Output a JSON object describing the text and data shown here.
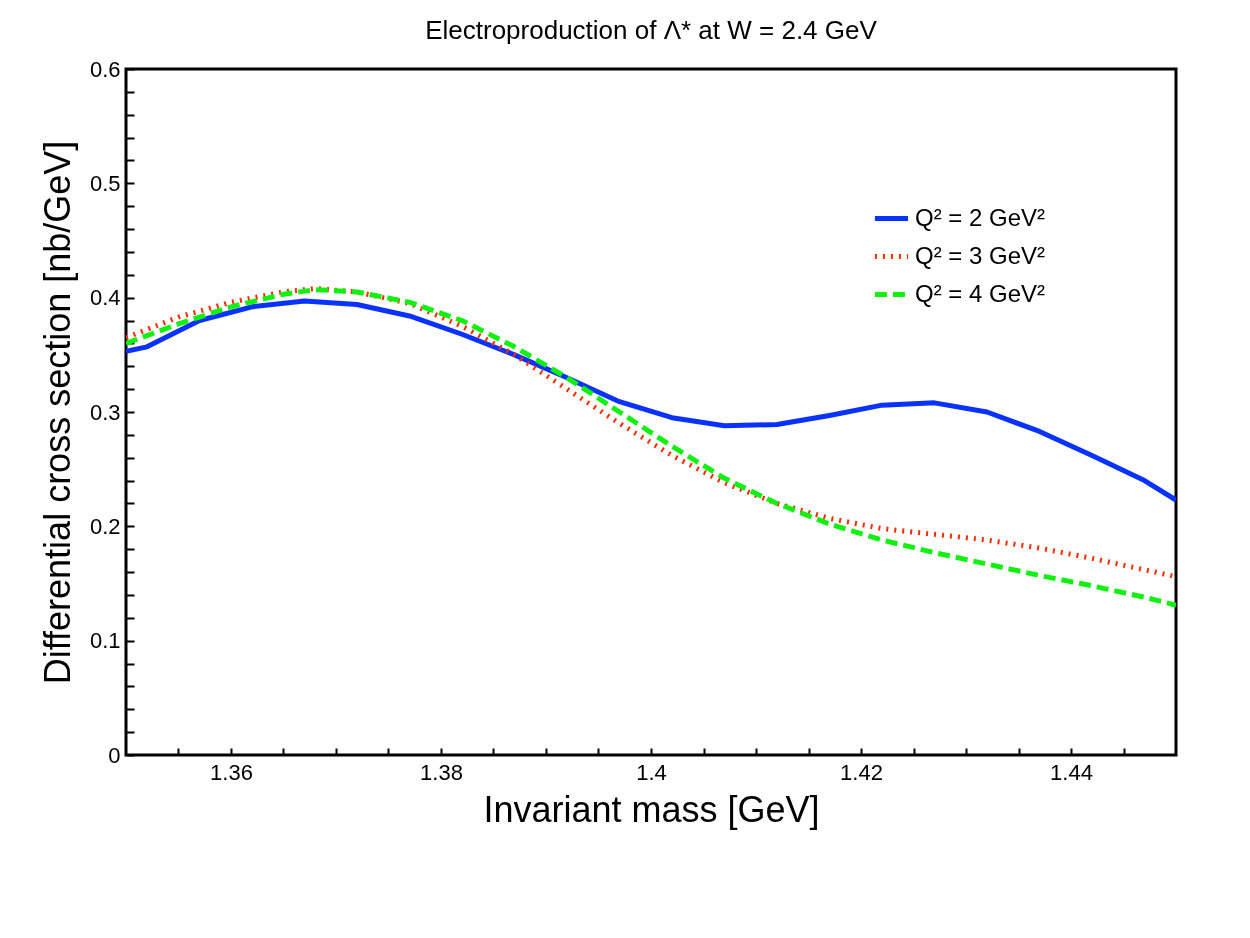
{
  "chart_data": {
    "type": "line",
    "title": "Electroproduction of Λ* at W = 2.4 GeV",
    "xlabel": "Invariant mass [GeV]",
    "ylabel": "Differential cross section [nb/GeV]",
    "xlim": [
      1.35,
      1.45
    ],
    "ylim": [
      0,
      0.6
    ],
    "xticks": [
      {
        "value": 1.355,
        "label": null
      },
      1.36,
      {
        "value": 1.365,
        "label": null
      },
      {
        "value": 1.37,
        "label": null
      },
      {
        "value": 1.375,
        "label": null
      },
      1.38,
      {
        "value": 1.385,
        "label": null
      },
      {
        "value": 1.39,
        "label": null
      },
      {
        "value": 1.395,
        "label": null
      },
      {
        "value": 1.4,
        "label": "1.4"
      },
      {
        "value": 1.405,
        "label": null
      },
      {
        "value": 1.41,
        "label": null
      },
      {
        "value": 1.415,
        "label": null
      },
      1.42,
      {
        "value": 1.425,
        "label": null
      },
      {
        "value": 1.43,
        "label": null
      },
      {
        "value": 1.435,
        "label": null
      },
      1.44,
      {
        "value": 1.445,
        "label": null
      }
    ],
    "yticks": [
      0,
      {
        "value": 0.02,
        "label": null
      },
      {
        "value": 0.04,
        "label": null
      },
      {
        "value": 0.06,
        "label": null
      },
      {
        "value": 0.08,
        "label": null
      },
      0.1,
      {
        "value": 0.12,
        "label": null
      },
      {
        "value": 0.14,
        "label": null
      },
      {
        "value": 0.16,
        "label": null
      },
      {
        "value": 0.18,
        "label": null
      },
      0.2,
      {
        "value": 0.22,
        "label": null
      },
      {
        "value": 0.24,
        "label": null
      },
      {
        "value": 0.26,
        "label": null
      },
      {
        "value": 0.28,
        "label": null
      },
      0.3,
      {
        "value": 0.32,
        "label": null
      },
      {
        "value": 0.34,
        "label": null
      },
      {
        "value": 0.36,
        "label": null
      },
      {
        "value": 0.38,
        "label": null
      },
      0.4,
      {
        "value": 0.42,
        "label": null
      },
      {
        "value": 0.44,
        "label": null
      },
      {
        "value": 0.46,
        "label": null
      },
      {
        "value": 0.48,
        "label": null
      },
      0.5,
      {
        "value": 0.52,
        "label": null
      },
      {
        "value": 0.54,
        "label": null
      },
      {
        "value": 0.56,
        "label": null
      },
      {
        "value": 0.58,
        "label": null
      },
      0.6
    ],
    "grid": false,
    "legend": "top right",
    "series": [
      {
        "name": "Q² = 2 GeV²",
        "color": "#0a32ff",
        "line_style": "solid",
        "x": [
          1.35,
          1.352,
          1.357,
          1.362,
          1.367,
          1.372,
          1.377,
          1.382,
          1.387,
          1.392,
          1.397,
          1.402,
          1.407,
          1.412,
          1.417,
          1.422,
          1.427,
          1.432,
          1.437,
          1.442,
          1.447,
          1.45
        ],
        "values": [
          0.353,
          0.357,
          0.38,
          0.392,
          0.397,
          0.394,
          0.384,
          0.368,
          0.35,
          0.33,
          0.309,
          0.295,
          0.288,
          0.289,
          0.297,
          0.306,
          0.308,
          0.3,
          0.283,
          0.262,
          0.24,
          0.223
        ]
      },
      {
        "name": "Q² = 3 GeV²",
        "color": "#ff2a00",
        "line_style": "dotted",
        "x": [
          1.35,
          1.355,
          1.36,
          1.365,
          1.368,
          1.372,
          1.377,
          1.382,
          1.387,
          1.392,
          1.397,
          1.402,
          1.407,
          1.412,
          1.417,
          1.422,
          1.427,
          1.432,
          1.437,
          1.442,
          1.447,
          1.45
        ],
        "values": [
          0.365,
          0.383,
          0.396,
          0.405,
          0.408,
          0.405,
          0.395,
          0.375,
          0.35,
          0.32,
          0.29,
          0.262,
          0.238,
          0.22,
          0.207,
          0.198,
          0.193,
          0.188,
          0.181,
          0.172,
          0.162,
          0.156
        ]
      },
      {
        "name": "Q² = 4 GeV²",
        "color": "#12f012",
        "line_style": "dashed",
        "x": [
          1.35,
          1.355,
          1.36,
          1.365,
          1.368,
          1.372,
          1.377,
          1.382,
          1.387,
          1.392,
          1.397,
          1.402,
          1.407,
          1.412,
          1.417,
          1.422,
          1.427,
          1.432,
          1.437,
          1.442,
          1.447,
          1.45
        ],
        "values": [
          0.36,
          0.377,
          0.392,
          0.403,
          0.407,
          0.405,
          0.396,
          0.38,
          0.357,
          0.33,
          0.3,
          0.27,
          0.242,
          0.22,
          0.202,
          0.188,
          0.177,
          0.167,
          0.157,
          0.148,
          0.138,
          0.131
        ]
      }
    ]
  }
}
